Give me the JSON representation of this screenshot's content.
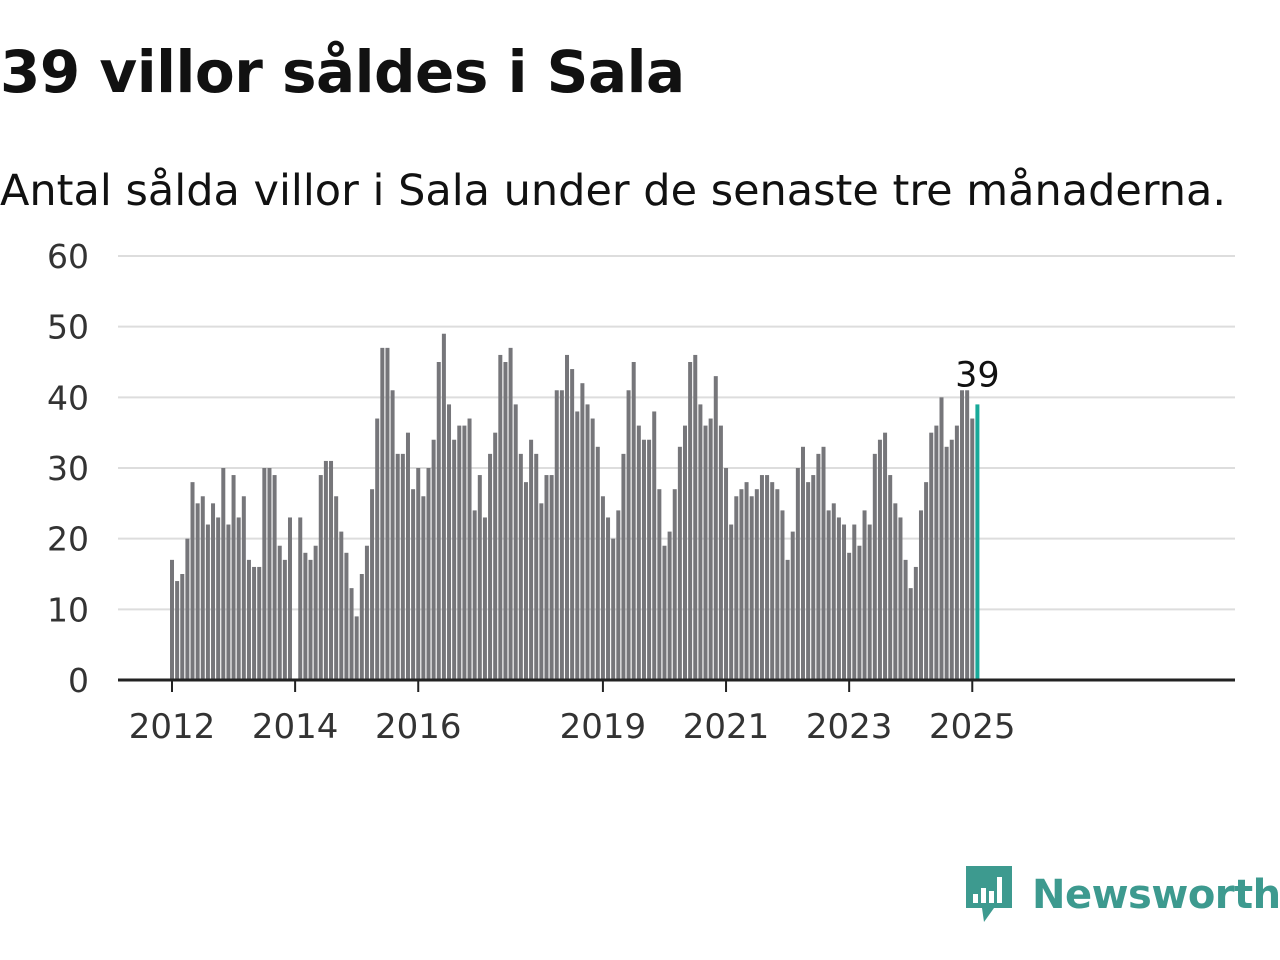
{
  "title": "39 villor såldes i Sala",
  "subtitle": "Antal sålda villor i Sala under de senaste tre månaderna.",
  "brand": {
    "name": "Newsworthy",
    "icon": "bar-chart-speech-bubble-icon",
    "color": "#3d9a8f"
  },
  "colors": {
    "bar": "#76767a",
    "highlight": "#18a999",
    "grid": "#dddddd",
    "axis": "#222222"
  },
  "chart_data": {
    "type": "bar",
    "title": "39 villor såldes i Sala",
    "subtitle": "Antal sålda villor i Sala under de senaste tre månaderna.",
    "xlabel": "",
    "ylabel": "",
    "ylim": [
      0,
      60
    ],
    "y_ticks": [
      0,
      10,
      20,
      30,
      40,
      50,
      60
    ],
    "x_ticks": [
      "2012",
      "2014",
      "2016",
      "2019",
      "2021",
      "2023",
      "2025"
    ],
    "x_tick_dates": [
      "2012-01",
      "2014-01",
      "2016-01",
      "2019-01",
      "2021-01",
      "2023-01",
      "2025-01"
    ],
    "grid": true,
    "first_month": "2012-01",
    "frequency": "monthly",
    "highlight_last": true,
    "last_label": "39",
    "values": [
      17,
      14,
      15,
      20,
      28,
      25,
      26,
      22,
      25,
      23,
      30,
      22,
      29,
      23,
      26,
      17,
      16,
      16,
      30,
      30,
      29,
      19,
      17,
      23,
      null,
      23,
      18,
      17,
      19,
      29,
      31,
      31,
      26,
      21,
      18,
      13,
      9,
      15,
      19,
      27,
      37,
      47,
      47,
      41,
      32,
      32,
      35,
      27,
      30,
      26,
      30,
      34,
      45,
      49,
      39,
      34,
      36,
      36,
      37,
      24,
      29,
      23,
      32,
      35,
      46,
      45,
      47,
      39,
      32,
      28,
      34,
      32,
      25,
      29,
      29,
      41,
      41,
      46,
      44,
      38,
      42,
      39,
      37,
      33,
      26,
      23,
      20,
      24,
      32,
      41,
      45,
      36,
      34,
      34,
      38,
      27,
      19,
      21,
      27,
      33,
      36,
      45,
      46,
      39,
      36,
      37,
      43,
      36,
      30,
      22,
      26,
      27,
      28,
      26,
      27,
      29,
      29,
      28,
      27,
      24,
      17,
      21,
      30,
      33,
      28,
      29,
      32,
      33,
      24,
      25,
      23,
      22,
      18,
      22,
      19,
      24,
      22,
      32,
      34,
      35,
      29,
      25,
      23,
      17,
      13,
      16,
      24,
      28,
      35,
      36,
      40,
      33,
      34,
      36,
      41,
      41,
      37,
      39
    ]
  }
}
